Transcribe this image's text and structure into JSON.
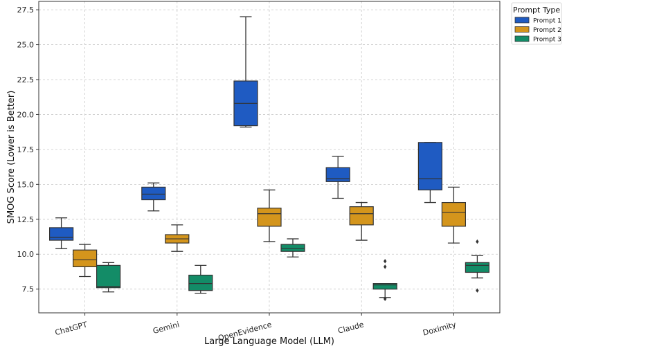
{
  "chart_data": {
    "type": "box",
    "xlabel": "Large Language Model (LLM)",
    "ylabel": "SMOG Score (Lower is Better)",
    "ylim": [
      5.8,
      28.1
    ],
    "yticks": [
      "7.5",
      "10.0",
      "12.5",
      "15.0",
      "17.5",
      "20.0",
      "22.5",
      "25.0",
      "27.5"
    ],
    "categories": [
      "ChatGPT",
      "Gemini",
      "OpenEvidence",
      "Claude",
      "Doximity"
    ],
    "grid": true,
    "legend": {
      "title": "Prompt Type",
      "placement": "outside-right-top"
    },
    "series": [
      {
        "name": "Prompt 1",
        "color": "#1f5bc2",
        "boxes": [
          {
            "whisker_low": 10.4,
            "q1": 11.0,
            "median": 11.2,
            "q3": 11.9,
            "whisker_high": 12.6,
            "outliers": []
          },
          {
            "whisker_low": 13.1,
            "q1": 13.9,
            "median": 14.3,
            "q3": 14.8,
            "whisker_high": 15.1,
            "outliers": []
          },
          {
            "whisker_low": 19.1,
            "q1": 19.2,
            "median": 20.8,
            "q3": 22.4,
            "whisker_high": 27.0,
            "outliers": []
          },
          {
            "whisker_low": 14.0,
            "q1": 15.2,
            "median": 15.4,
            "q3": 16.2,
            "whisker_high": 17.0,
            "outliers": []
          },
          {
            "whisker_low": 13.7,
            "q1": 14.6,
            "median": 15.4,
            "q3": 18.0,
            "whisker_high": 18.0,
            "outliers": []
          }
        ]
      },
      {
        "name": "Prompt 2",
        "color": "#d4951c",
        "boxes": [
          {
            "whisker_low": 8.4,
            "q1": 9.1,
            "median": 9.6,
            "q3": 10.3,
            "whisker_high": 10.7,
            "outliers": []
          },
          {
            "whisker_low": 10.2,
            "q1": 10.8,
            "median": 11.1,
            "q3": 11.4,
            "whisker_high": 12.1,
            "outliers": []
          },
          {
            "whisker_low": 10.9,
            "q1": 12.0,
            "median": 12.9,
            "q3": 13.3,
            "whisker_high": 14.6,
            "outliers": []
          },
          {
            "whisker_low": 11.0,
            "q1": 12.1,
            "median": 12.9,
            "q3": 13.4,
            "whisker_high": 13.7,
            "outliers": []
          },
          {
            "whisker_low": 10.8,
            "q1": 12.0,
            "median": 13.0,
            "q3": 13.7,
            "whisker_high": 14.8,
            "outliers": []
          }
        ]
      },
      {
        "name": "Prompt 3",
        "color": "#138c67",
        "boxes": [
          {
            "whisker_low": 7.3,
            "q1": 7.6,
            "median": 7.7,
            "q3": 9.2,
            "whisker_high": 9.4,
            "outliers": []
          },
          {
            "whisker_low": 7.2,
            "q1": 7.4,
            "median": 7.9,
            "q3": 8.5,
            "whisker_high": 9.2,
            "outliers": []
          },
          {
            "whisker_low": 9.8,
            "q1": 10.2,
            "median": 10.4,
            "q3": 10.7,
            "whisker_high": 11.1,
            "outliers": []
          },
          {
            "whisker_low": 6.9,
            "q1": 7.5,
            "median": 7.8,
            "q3": 7.9,
            "whisker_high": 7.9,
            "outliers": [
              6.8,
              9.1,
              9.5
            ]
          },
          {
            "whisker_low": 8.3,
            "q1": 8.7,
            "median": 9.2,
            "q3": 9.4,
            "whisker_high": 9.9,
            "outliers": [
              7.4,
              10.9
            ]
          }
        ]
      }
    ]
  }
}
